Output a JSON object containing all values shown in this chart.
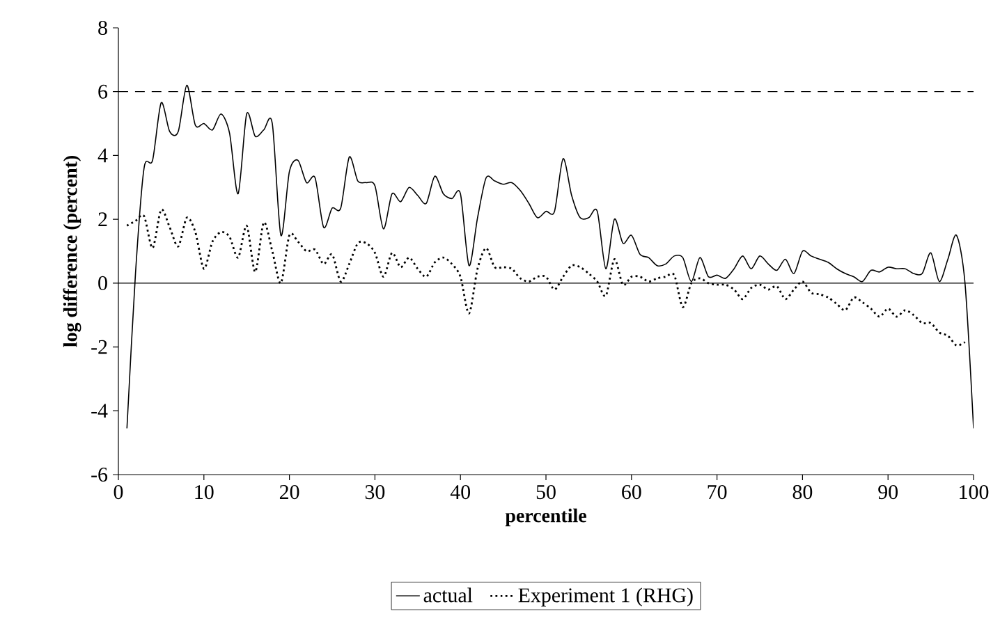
{
  "chart_data": {
    "type": "line",
    "xlabel": "percentile",
    "ylabel": "log difference (percent)",
    "xlim": [
      0,
      100
    ],
    "ylim": [
      -6,
      8
    ],
    "xticks": [
      0,
      10,
      20,
      30,
      40,
      50,
      60,
      70,
      80,
      90,
      100
    ],
    "yticks": [
      -6,
      -4,
      -2,
      0,
      2,
      4,
      6,
      8
    ],
    "legend": "bottom",
    "grid": false,
    "ref_lines": [
      {
        "axis": "y",
        "value": 6,
        "line_style": "dashed",
        "color": "#000000"
      },
      {
        "axis": "y",
        "value": 0,
        "line_style": "solid",
        "color": "#000000"
      }
    ],
    "series": [
      {
        "name": "actual",
        "color": "#000000",
        "line_style": "solid",
        "x": [
          1,
          2,
          3,
          4,
          5,
          6,
          7,
          8,
          9,
          10,
          11,
          12,
          13,
          14,
          15,
          16,
          17,
          18,
          19,
          20,
          21,
          22,
          23,
          24,
          25,
          26,
          27,
          28,
          29,
          30,
          31,
          32,
          33,
          34,
          35,
          36,
          37,
          38,
          39,
          40,
          41,
          42,
          43,
          44,
          45,
          46,
          47,
          48,
          49,
          50,
          51,
          52,
          53,
          54,
          55,
          56,
          57,
          58,
          59,
          60,
          61,
          62,
          63,
          64,
          65,
          66,
          67,
          68,
          69,
          70,
          71,
          72,
          73,
          74,
          75,
          76,
          77,
          78,
          79,
          80,
          81,
          82,
          83,
          84,
          85,
          86,
          87,
          88,
          89,
          90,
          91,
          92,
          93,
          94,
          95,
          96,
          97,
          98,
          99,
          100
        ],
        "values": [
          -4.55,
          0.3,
          3.6,
          3.85,
          5.65,
          4.75,
          4.75,
          6.2,
          4.95,
          5.0,
          4.8,
          5.3,
          4.7,
          2.8,
          5.3,
          4.6,
          4.8,
          5.0,
          1.5,
          3.5,
          3.85,
          3.15,
          3.3,
          1.75,
          2.35,
          2.35,
          3.95,
          3.2,
          3.15,
          3.05,
          1.7,
          2.8,
          2.55,
          3.0,
          2.75,
          2.5,
          3.35,
          2.8,
          2.65,
          2.8,
          0.55,
          2.05,
          3.3,
          3.2,
          3.1,
          3.15,
          2.9,
          2.5,
          2.05,
          2.25,
          2.25,
          3.9,
          2.75,
          2.05,
          2.05,
          2.25,
          0.45,
          2.0,
          1.25,
          1.5,
          0.9,
          0.8,
          0.55,
          0.6,
          0.85,
          0.8,
          0.05,
          0.8,
          0.2,
          0.25,
          0.15,
          0.45,
          0.85,
          0.45,
          0.85,
          0.6,
          0.4,
          0.75,
          0.3,
          1.0,
          0.85,
          0.75,
          0.65,
          0.45,
          0.3,
          0.2,
          0.05,
          0.4,
          0.35,
          0.5,
          0.45,
          0.45,
          0.3,
          0.3,
          0.95,
          0.05,
          0.75,
          1.5,
          0.0,
          -4.55
        ]
      },
      {
        "name": "Experiment 1 (RHG)",
        "color": "#000000",
        "line_style": "dotted",
        "x": [
          1,
          2,
          3,
          4,
          5,
          6,
          7,
          8,
          9,
          10,
          11,
          12,
          13,
          14,
          15,
          16,
          17,
          18,
          19,
          20,
          21,
          22,
          23,
          24,
          25,
          26,
          27,
          28,
          29,
          30,
          31,
          32,
          33,
          34,
          35,
          36,
          37,
          38,
          39,
          40,
          41,
          42,
          43,
          44,
          45,
          46,
          47,
          48,
          49,
          50,
          51,
          52,
          53,
          54,
          55,
          56,
          57,
          58,
          59,
          60,
          61,
          62,
          63,
          64,
          65,
          66,
          67,
          68,
          69,
          70,
          71,
          72,
          73,
          74,
          75,
          76,
          77,
          78,
          79,
          80,
          81,
          82,
          83,
          84,
          85,
          86,
          87,
          88,
          89,
          90,
          91,
          92,
          93,
          94,
          95,
          96,
          97,
          98,
          99
        ],
        "values": [
          1.8,
          1.95,
          2.1,
          1.1,
          2.3,
          1.75,
          1.15,
          2.05,
          1.6,
          0.45,
          1.3,
          1.6,
          1.45,
          0.8,
          1.8,
          0.35,
          1.9,
          1.0,
          0.0,
          1.5,
          1.3,
          1.0,
          1.05,
          0.6,
          0.9,
          0.05,
          0.6,
          1.25,
          1.25,
          0.95,
          0.2,
          0.95,
          0.5,
          0.8,
          0.45,
          0.2,
          0.65,
          0.8,
          0.6,
          0.2,
          -0.95,
          0.45,
          1.1,
          0.5,
          0.5,
          0.45,
          0.15,
          0.05,
          0.2,
          0.2,
          -0.2,
          0.2,
          0.55,
          0.5,
          0.3,
          0.05,
          -0.4,
          0.75,
          -0.05,
          0.2,
          0.2,
          0.05,
          0.15,
          0.2,
          0.25,
          -0.75,
          0.0,
          0.15,
          0.0,
          -0.05,
          -0.05,
          -0.2,
          -0.5,
          -0.15,
          -0.05,
          -0.2,
          -0.1,
          -0.5,
          -0.2,
          0.05,
          -0.3,
          -0.35,
          -0.45,
          -0.65,
          -0.85,
          -0.45,
          -0.6,
          -0.8,
          -1.05,
          -0.8,
          -1.05,
          -0.85,
          -1.0,
          -1.25,
          -1.25,
          -1.55,
          -1.65,
          -1.95,
          -1.85
        ]
      }
    ]
  }
}
